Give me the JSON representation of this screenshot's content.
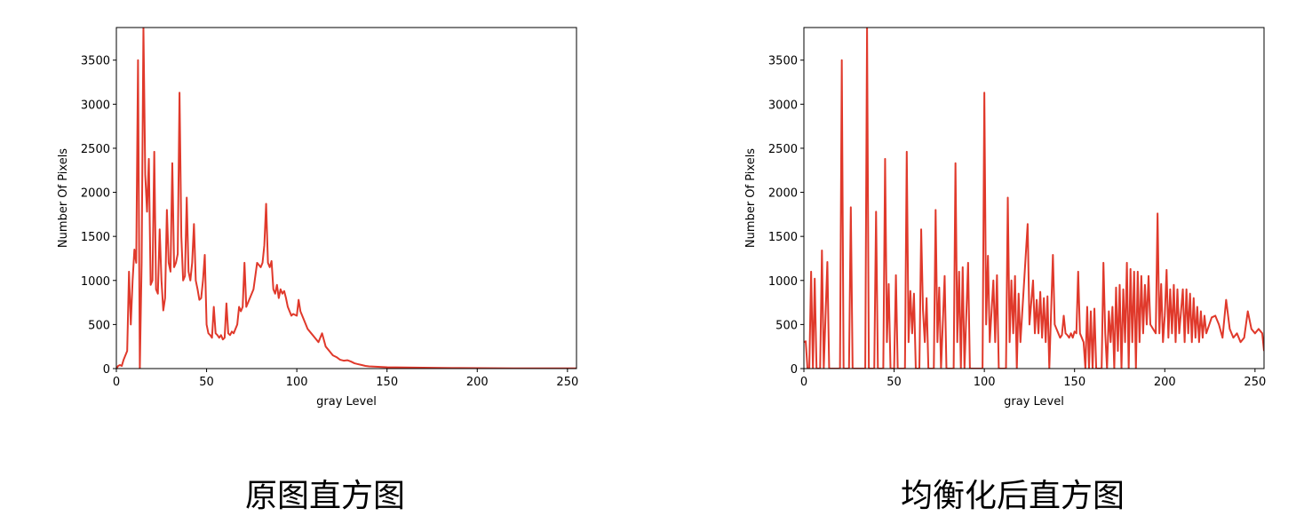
{
  "chart_data": [
    {
      "type": "line",
      "title": "原图直方图",
      "xlabel": "gray Level",
      "ylabel": "Number Of Pixels",
      "color": "#e0392b",
      "xlim": [
        0,
        255
      ],
      "ylim": [
        0,
        3870
      ],
      "xticks": [
        0,
        50,
        100,
        150,
        200,
        250
      ],
      "yticks": [
        0,
        500,
        1000,
        1500,
        2000,
        2500,
        3000,
        3500
      ],
      "x": [
        0,
        1,
        2,
        3,
        4,
        5,
        6,
        7,
        8,
        9,
        10,
        11,
        12,
        13,
        14,
        15,
        16,
        17,
        18,
        19,
        20,
        21,
        22,
        23,
        24,
        25,
        26,
        27,
        28,
        29,
        30,
        31,
        32,
        33,
        34,
        35,
        36,
        37,
        38,
        39,
        40,
        41,
        42,
        43,
        44,
        45,
        46,
        47,
        48,
        49,
        50,
        51,
        52,
        53,
        54,
        55,
        56,
        57,
        58,
        59,
        60,
        61,
        62,
        63,
        64,
        65,
        66,
        67,
        68,
        69,
        70,
        71,
        72,
        74,
        76,
        78,
        80,
        81,
        82,
        83,
        84,
        85,
        86,
        87,
        88,
        89,
        90,
        91,
        92,
        93,
        94,
        95,
        96,
        97,
        98,
        100,
        101,
        102,
        104,
        106,
        108,
        110,
        112,
        114,
        116,
        118,
        120,
        122,
        124,
        126,
        128,
        130,
        132,
        134,
        136,
        138,
        140,
        145,
        150,
        160,
        170,
        180,
        190,
        200,
        210,
        220,
        230,
        240,
        250,
        255
      ],
      "values": [
        0,
        30,
        40,
        30,
        100,
        150,
        200,
        1100,
        500,
        1000,
        1350,
        1200,
        3500,
        0,
        1200,
        3870,
        2200,
        1780,
        2380,
        950,
        1000,
        2460,
        900,
        850,
        1580,
        1000,
        660,
        800,
        1800,
        1200,
        1100,
        2330,
        1150,
        1200,
        1300,
        3130,
        1500,
        1000,
        1050,
        1940,
        1100,
        1000,
        1200,
        1640,
        1000,
        900,
        780,
        800,
        1000,
        1290,
        500,
        400,
        380,
        350,
        700,
        400,
        380,
        350,
        380,
        330,
        350,
        740,
        400,
        380,
        420,
        400,
        450,
        500,
        700,
        650,
        700,
        1200,
        700,
        800,
        900,
        1200,
        1150,
        1200,
        1400,
        1870,
        1200,
        1150,
        1220,
        900,
        850,
        950,
        800,
        900,
        850,
        880,
        800,
        700,
        650,
        600,
        620,
        600,
        780,
        650,
        550,
        450,
        400,
        350,
        300,
        400,
        250,
        200,
        150,
        130,
        100,
        90,
        95,
        80,
        60,
        50,
        40,
        30,
        25,
        20,
        15,
        12,
        10,
        8,
        6,
        5,
        4,
        3,
        3,
        2,
        2,
        2
      ]
    },
    {
      "type": "line",
      "title": "均衡化后直方图",
      "xlabel": "gray Level",
      "ylabel": "Number Of Pixels",
      "color": "#e0392b",
      "xlim": [
        0,
        255
      ],
      "ylim": [
        0,
        3870
      ],
      "xticks": [
        0,
        50,
        100,
        150,
        200,
        250
      ],
      "yticks": [
        0,
        500,
        1000,
        1500,
        2000,
        2500,
        3000,
        3500
      ],
      "x": [
        0,
        1,
        2,
        3,
        4,
        5,
        6,
        7,
        9,
        10,
        11,
        13,
        14,
        20,
        21,
        22,
        25,
        26,
        27,
        34,
        35,
        36,
        39,
        40,
        41,
        44,
        45,
        46,
        47,
        48,
        50,
        51,
        52,
        56,
        57,
        58,
        59,
        60,
        61,
        62,
        64,
        65,
        66,
        67,
        68,
        69,
        72,
        73,
        74,
        75,
        76,
        78,
        79,
        83,
        84,
        85,
        86,
        87,
        88,
        89,
        91,
        92,
        99,
        100,
        101,
        102,
        103,
        105,
        106,
        107,
        108,
        112,
        113,
        114,
        115,
        116,
        117,
        118,
        119,
        120,
        124,
        125,
        127,
        128,
        129,
        130,
        131,
        132,
        133,
        134,
        135,
        136,
        138,
        139,
        140,
        141,
        142,
        143,
        144,
        145,
        146,
        147,
        148,
        149,
        150,
        151,
        152,
        153,
        154,
        155,
        156,
        157,
        158,
        159,
        160,
        161,
        162,
        165,
        166,
        167,
        168,
        169,
        170,
        171,
        172,
        173,
        174,
        175,
        176,
        177,
        178,
        179,
        180,
        181,
        182,
        183,
        184,
        185,
        186,
        187,
        188,
        189,
        190,
        191,
        192,
        195,
        196,
        197,
        198,
        199,
        200,
        201,
        202,
        203,
        204,
        205,
        206,
        207,
        208,
        210,
        211,
        212,
        213,
        214,
        215,
        216,
        217,
        218,
        219,
        220,
        221,
        222,
        223,
        226,
        228,
        230,
        232,
        234,
        236,
        238,
        240,
        242,
        244,
        246,
        248,
        250,
        252,
        254,
        255
      ],
      "values": [
        300,
        310,
        0,
        0,
        1100,
        0,
        1020,
        0,
        0,
        1340,
        0,
        1210,
        0,
        0,
        3500,
        0,
        0,
        1830,
        0,
        0,
        3870,
        0,
        0,
        1780,
        0,
        0,
        2380,
        300,
        960,
        0,
        0,
        1060,
        0,
        0,
        2460,
        300,
        880,
        400,
        850,
        0,
        0,
        1580,
        660,
        300,
        800,
        0,
        0,
        1800,
        300,
        920,
        0,
        1050,
        0,
        0,
        2330,
        300,
        1100,
        0,
        1150,
        0,
        1200,
        0,
        0,
        3130,
        500,
        1280,
        300,
        1000,
        300,
        1060,
        0,
        0,
        1940,
        300,
        1000,
        400,
        1050,
        0,
        850,
        300,
        1640,
        500,
        1000,
        400,
        780,
        400,
        870,
        350,
        800,
        300,
        820,
        0,
        1290,
        500,
        450,
        400,
        350,
        380,
        600,
        400,
        380,
        350,
        400,
        350,
        420,
        400,
        1100,
        400,
        350,
        300,
        0,
        700,
        0,
        650,
        0,
        680,
        0,
        0,
        1200,
        400,
        0,
        650,
        300,
        700,
        0,
        920,
        200,
        950,
        0,
        900,
        300,
        1200,
        0,
        1130,
        300,
        1100,
        0,
        1100,
        300,
        1050,
        400,
        950,
        500,
        1050,
        500,
        400,
        1760,
        400,
        960,
        300,
        600,
        1120,
        350,
        900,
        400,
        950,
        300,
        900,
        400,
        900,
        300,
        900,
        400,
        850,
        300,
        800,
        350,
        700,
        300,
        650,
        350,
        600,
        400,
        580,
        600,
        500,
        350,
        780,
        450,
        350,
        400,
        300,
        350,
        650,
        450,
        400,
        450,
        400,
        200
      ]
    }
  ]
}
